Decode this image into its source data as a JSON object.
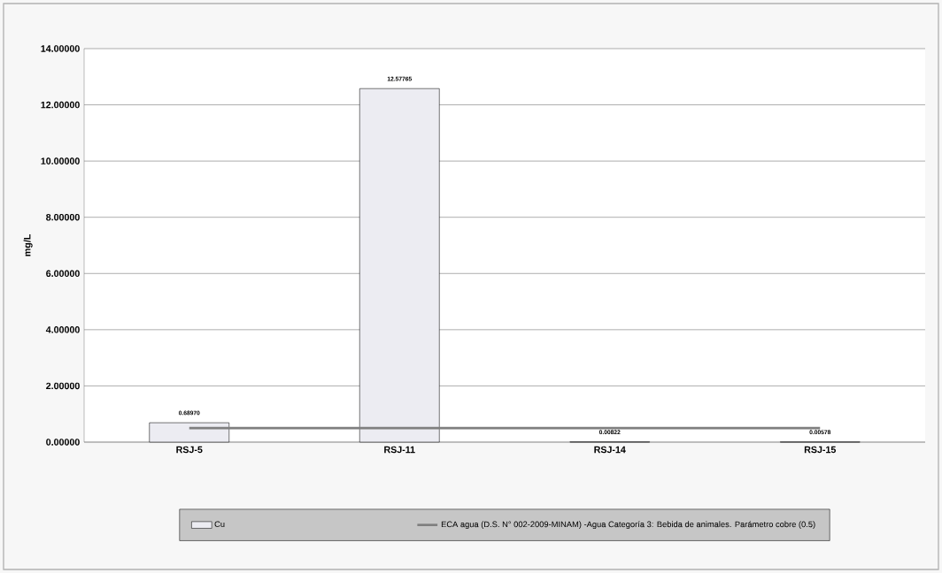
{
  "chart_data": {
    "type": "bar",
    "ylabel": "mg/L",
    "categories": [
      "RSJ-5",
      "RSJ-11",
      "RSJ-14",
      "RSJ-15"
    ],
    "series": [
      {
        "name": "Cu",
        "color": "#ececf2",
        "values": [
          0.6897,
          12.57765,
          0.00822,
          0.00578
        ],
        "value_labels": [
          "0.68970",
          "12.57765",
          "0.00822",
          "0.00578"
        ]
      },
      {
        "name": "ECA agua (D.S. N° 002-2009-MINAM)  -Agua Categoría 3: Bebida de animales. Parámetro cobre (0.5)",
        "type": "line",
        "color": "#7f7f7f",
        "values": [
          0.5,
          0.5,
          0.5,
          0.5
        ]
      }
    ],
    "ylim": [
      0,
      14
    ],
    "yticks": [
      {
        "value": 0,
        "label": "0.00000"
      },
      {
        "value": 2,
        "label": "2.00000"
      },
      {
        "value": 4,
        "label": "4.00000"
      },
      {
        "value": 6,
        "label": "6.00000"
      },
      {
        "value": 8,
        "label": "8.00000"
      },
      {
        "value": 10,
        "label": "10.00000"
      },
      {
        "value": 12,
        "label": "12.00000"
      },
      {
        "value": 14,
        "label": "14.00000"
      }
    ],
    "grid": "y",
    "legend": "bottom",
    "marker": "none",
    "line_style": "solid"
  }
}
